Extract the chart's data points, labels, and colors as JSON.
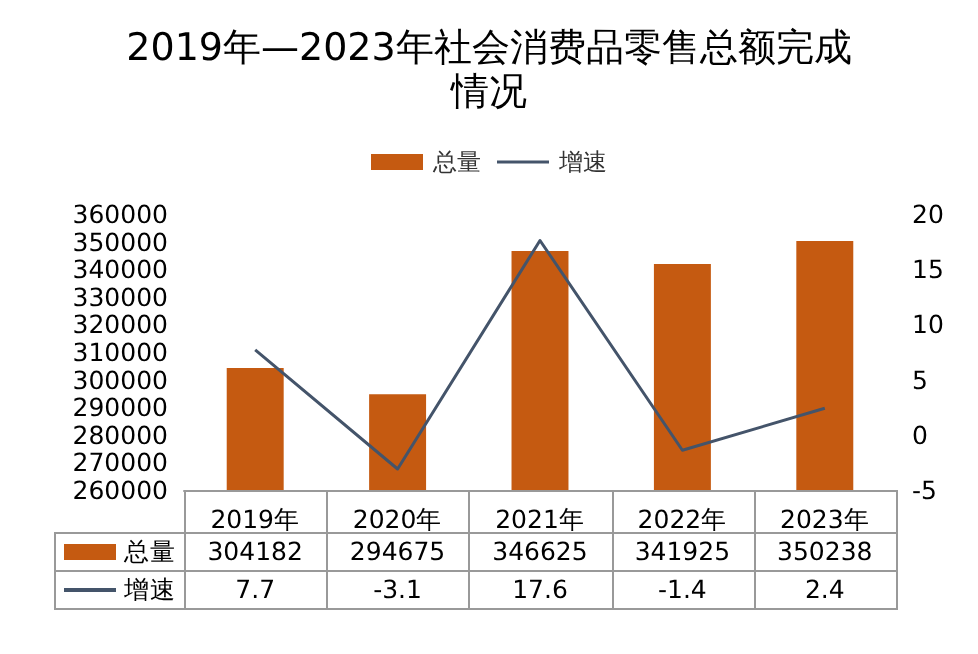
{
  "chart_data": {
    "type": "bar",
    "title": "2019年—2023年社会消费品零售总额完成情况",
    "categories": [
      "2019年",
      "2020年",
      "2021年",
      "2022年",
      "2023年"
    ],
    "series": [
      {
        "name": "总量",
        "color": "#c55a11",
        "values": [
          304182,
          294675,
          346625,
          341925,
          350238
        ]
      },
      {
        "name": "增速",
        "type": "line",
        "axis": "y2",
        "color": "#44546a",
        "values": [
          7.7,
          -3.1,
          17.6,
          -1.4,
          2.4
        ]
      }
    ],
    "ylim": [
      260000,
      360000
    ],
    "yticks": [
      260000,
      270000,
      280000,
      290000,
      300000,
      310000,
      320000,
      330000,
      340000,
      350000,
      360000
    ],
    "y2lim": [
      -5,
      20
    ],
    "y2ticks": [
      -5,
      0,
      5,
      10,
      15,
      20
    ],
    "legend": "top",
    "marker": "none",
    "line_style": "solid",
    "data_labels": true
  }
}
